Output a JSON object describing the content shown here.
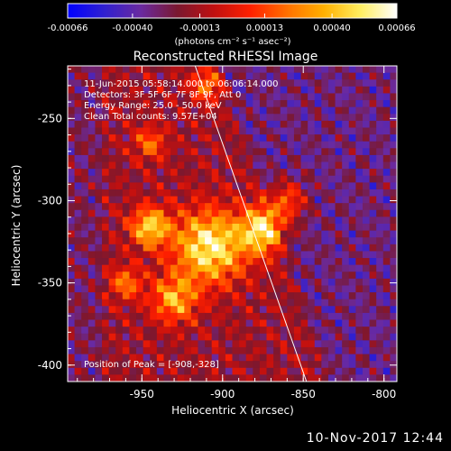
{
  "chart_data": {
    "type": "heatmap",
    "title": "Reconstructed RHESSI Image",
    "xlabel": "Heliocentric X (arcsec)",
    "ylabel": "Heliocentric Y (arcsec)",
    "xlim": [
      -996,
      -792
    ],
    "ylim": [
      -410,
      -218
    ],
    "xticks": [
      -950,
      -900,
      -850,
      -800
    ],
    "xtick_labels": [
      "-950",
      "-900",
      "-850",
      "-800"
    ],
    "yticks": [
      -250,
      -300,
      -350,
      -400
    ],
    "ytick_labels": [
      "-250",
      "-300",
      "-350",
      "-400"
    ],
    "colorbar": {
      "min": -0.00066,
      "max": 0.00066,
      "ticks": [
        -0.00066,
        -0.0004,
        -0.00013,
        0.00013,
        0.0004,
        0.00066
      ],
      "tick_labels": [
        "-0.00066",
        "-0.00040",
        "-0.00013",
        "0.00013",
        "0.00040",
        "0.00066"
      ],
      "unit_label": "(photons cm⁻² s⁻¹ asec⁻²)",
      "colors": [
        "#0000ff",
        "#3020d0",
        "#6a2aa0",
        "#7a1830",
        "#c01010",
        "#ff2000",
        "#ff7000",
        "#ffb000",
        "#ffee60",
        "#ffffff"
      ]
    },
    "info_lines": [
      "11-Jun-2015 05:58:14.000 to 06:06:14.000",
      "Detectors: 3F 5F 6F 7F 8F 9F, Att 0",
      "Energy Range: 25.0 - 50.0 keV",
      "Clean     Total counts: 9.57E+04"
    ],
    "peak_label": "Position of Peak = [-908,-328]",
    "peak": [
      -908,
      -328
    ],
    "limb_line": [
      [
        -917,
        -218
      ],
      [
        -848,
        -410
      ]
    ]
  },
  "footer": {
    "timestamp": "10-Nov-2017 12:44"
  }
}
